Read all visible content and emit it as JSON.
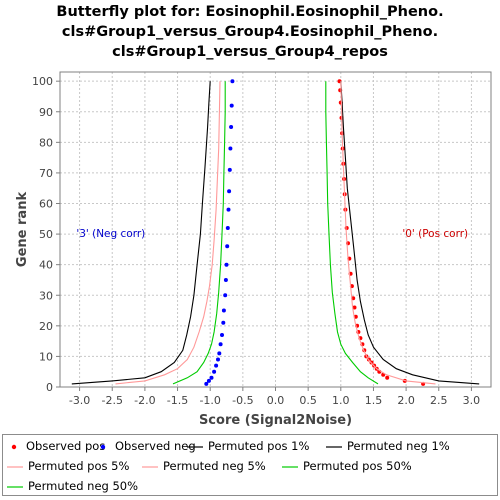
{
  "chart_data": {
    "type": "line",
    "title_lines": [
      "Butterfly plot for: Eosinophil.Eosinophil_Pheno.",
      "cls#Group1_versus_Group4.Eosinophil_Pheno.",
      "cls#Group1_versus_Group4_repos"
    ],
    "xlabel": "Score (Signal2Noise)",
    "ylabel": "Gene rank",
    "xlim": [
      -3.3,
      3.3
    ],
    "ylim": [
      0,
      103
    ],
    "xticks": [
      "-3.0",
      "-2.5",
      "-2.0",
      "-1.5",
      "-1.0",
      "-0.5",
      "0.0",
      "0.5",
      "1.0",
      "1.5",
      "2.0",
      "2.5",
      "3.0"
    ],
    "yticks": [
      "0",
      "10",
      "20",
      "30",
      "40",
      "50",
      "60",
      "70",
      "80",
      "90",
      "100"
    ],
    "grid": true,
    "legend_position": "bottom",
    "annotations": [
      {
        "text": "'3' (Neg corr)",
        "x": -3.05,
        "y": 49,
        "color": "#0000cc"
      },
      {
        "text": "'0' (Pos corr)",
        "x": 2.95,
        "y": 49,
        "color": "#cc0000"
      }
    ],
    "series": [
      {
        "name": "Observed pos",
        "style": "points",
        "color": "#ff0000",
        "points": [
          [
            2.26,
            1
          ],
          [
            1.98,
            2
          ],
          [
            1.71,
            3
          ],
          [
            1.65,
            4
          ],
          [
            1.59,
            5
          ],
          [
            1.55,
            6
          ],
          [
            1.51,
            7
          ],
          [
            1.47,
            8
          ],
          [
            1.43,
            9
          ],
          [
            1.39,
            10
          ],
          [
            1.36,
            12
          ],
          [
            1.33,
            14
          ],
          [
            1.3,
            16
          ],
          [
            1.27,
            18
          ],
          [
            1.25,
            20
          ],
          [
            1.23,
            23
          ],
          [
            1.21,
            26
          ],
          [
            1.19,
            29
          ],
          [
            1.17,
            33
          ],
          [
            1.15,
            37
          ],
          [
            1.13,
            42
          ],
          [
            1.11,
            47
          ],
          [
            1.09,
            52
          ],
          [
            1.07,
            58
          ],
          [
            1.06,
            63
          ],
          [
            1.05,
            68
          ],
          [
            1.04,
            73
          ],
          [
            1.03,
            78
          ],
          [
            1.02,
            83
          ],
          [
            1.01,
            88
          ],
          [
            1.0,
            93
          ],
          [
            0.99,
            97
          ],
          [
            0.98,
            100
          ]
        ]
      },
      {
        "name": "Observed neg",
        "style": "points",
        "color": "#0000ff",
        "points": [
          [
            -1.06,
            1
          ],
          [
            -1.02,
            2
          ],
          [
            -0.98,
            3
          ],
          [
            -0.94,
            5
          ],
          [
            -0.91,
            7
          ],
          [
            -0.88,
            9
          ],
          [
            -0.86,
            11
          ],
          [
            -0.84,
            14
          ],
          [
            -0.82,
            17
          ],
          [
            -0.8,
            21
          ],
          [
            -0.79,
            25
          ],
          [
            -0.77,
            30
          ],
          [
            -0.76,
            35
          ],
          [
            -0.75,
            40
          ],
          [
            -0.74,
            46
          ],
          [
            -0.73,
            52
          ],
          [
            -0.72,
            58
          ],
          [
            -0.71,
            64
          ],
          [
            -0.7,
            71
          ],
          [
            -0.69,
            78
          ],
          [
            -0.68,
            85
          ],
          [
            -0.67,
            92
          ],
          [
            -0.66,
            100
          ]
        ]
      },
      {
        "name": "Permuted pos 1%",
        "style": "line",
        "color": "#000000",
        "points": [
          [
            3.12,
            1
          ],
          [
            2.5,
            2
          ],
          [
            2.1,
            4
          ],
          [
            1.85,
            6
          ],
          [
            1.65,
            9
          ],
          [
            1.5,
            13
          ],
          [
            1.42,
            17
          ],
          [
            1.36,
            22
          ],
          [
            1.3,
            28
          ],
          [
            1.25,
            35
          ],
          [
            1.2,
            45
          ],
          [
            1.15,
            55
          ],
          [
            1.1,
            65
          ],
          [
            1.07,
            75
          ],
          [
            1.04,
            85
          ],
          [
            1.02,
            93
          ],
          [
            1.0,
            100
          ]
        ]
      },
      {
        "name": "Permuted neg 1%",
        "style": "line",
        "color": "#000000",
        "points": [
          [
            -3.12,
            1
          ],
          [
            -2.5,
            2
          ],
          [
            -2.0,
            3
          ],
          [
            -1.75,
            5
          ],
          [
            -1.55,
            8
          ],
          [
            -1.42,
            12
          ],
          [
            -1.36,
            17
          ],
          [
            -1.3,
            23
          ],
          [
            -1.25,
            30
          ],
          [
            -1.2,
            40
          ],
          [
            -1.15,
            50
          ],
          [
            -1.12,
            60
          ],
          [
            -1.08,
            72
          ],
          [
            -1.04,
            85
          ],
          [
            -1.02,
            93
          ],
          [
            -1.0,
            100
          ]
        ]
      },
      {
        "name": "Permuted pos 5%",
        "style": "line",
        "color": "#ff9999",
        "points": [
          [
            2.45,
            1
          ],
          [
            2.0,
            2
          ],
          [
            1.7,
            4
          ],
          [
            1.55,
            6
          ],
          [
            1.42,
            9
          ],
          [
            1.35,
            12
          ],
          [
            1.28,
            16
          ],
          [
            1.22,
            21
          ],
          [
            1.18,
            26
          ],
          [
            1.15,
            33
          ],
          [
            1.11,
            42
          ],
          [
            1.08,
            52
          ],
          [
            1.06,
            62
          ],
          [
            1.04,
            72
          ],
          [
            1.02,
            83
          ],
          [
            1.01,
            92
          ],
          [
            1.0,
            100
          ]
        ]
      },
      {
        "name": "Permuted neg 5%",
        "style": "line",
        "color": "#ff9999",
        "points": [
          [
            -2.45,
            1
          ],
          [
            -2.0,
            2
          ],
          [
            -1.7,
            4
          ],
          [
            -1.5,
            6
          ],
          [
            -1.35,
            9
          ],
          [
            -1.25,
            13
          ],
          [
            -1.17,
            18
          ],
          [
            -1.1,
            23
          ],
          [
            -1.05,
            28
          ],
          [
            -1.01,
            33
          ],
          [
            -0.97,
            40
          ],
          [
            -0.94,
            48
          ],
          [
            -0.91,
            58
          ],
          [
            -0.89,
            68
          ],
          [
            -0.87,
            78
          ],
          [
            -0.86,
            88
          ],
          [
            -0.85,
            100
          ]
        ]
      },
      {
        "name": "Permuted pos 50%",
        "style": "line",
        "color": "#00cc00",
        "points": [
          [
            1.57,
            1
          ],
          [
            1.42,
            3
          ],
          [
            1.3,
            5
          ],
          [
            1.18,
            8
          ],
          [
            1.07,
            11
          ],
          [
            1.0,
            14
          ],
          [
            0.95,
            18
          ],
          [
            0.91,
            24
          ],
          [
            0.87,
            31
          ],
          [
            0.84,
            40
          ],
          [
            0.82,
            50
          ],
          [
            0.8,
            60
          ],
          [
            0.79,
            70
          ],
          [
            0.78,
            80
          ],
          [
            0.77,
            90
          ],
          [
            0.77,
            100
          ]
        ]
      },
      {
        "name": "Permuted neg 50%",
        "style": "line",
        "color": "#00cc00",
        "points": [
          [
            -1.57,
            1
          ],
          [
            -1.35,
            3
          ],
          [
            -1.2,
            5
          ],
          [
            -1.1,
            8
          ],
          [
            -1.03,
            11
          ],
          [
            -0.98,
            14
          ],
          [
            -0.94,
            18
          ],
          [
            -0.9,
            24
          ],
          [
            -0.87,
            31
          ],
          [
            -0.84,
            40
          ],
          [
            -0.82,
            50
          ],
          [
            -0.8,
            60
          ],
          [
            -0.79,
            70
          ],
          [
            -0.78,
            80
          ],
          [
            -0.77,
            90
          ],
          [
            -0.77,
            100
          ]
        ]
      }
    ]
  }
}
